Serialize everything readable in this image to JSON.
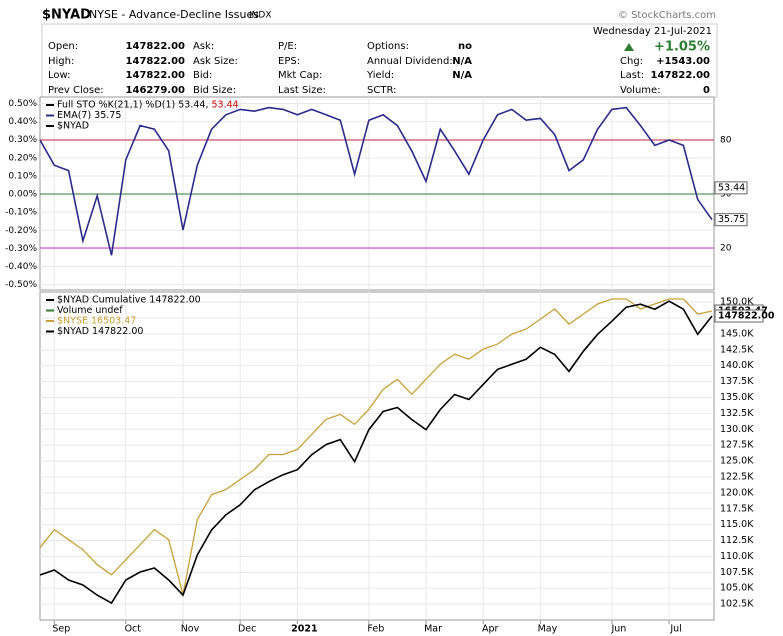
{
  "header": {
    "symbol": "$NYAD",
    "description": "NYSE - Advance-Decline Issues",
    "exchange": "INDX",
    "source": "© StockCharts.com",
    "date": "Wednesday  21-Jul-2021",
    "change_pct": "+1.05%",
    "quote_columns": [
      [
        {
          "label": "Open:",
          "value": "147822.00"
        },
        {
          "label": "High:",
          "value": "147822.00"
        },
        {
          "label": "Low:",
          "value": "147822.00"
        },
        {
          "label": "Prev Close:",
          "value": "146279.00"
        }
      ],
      [
        {
          "label": "Ask:"
        },
        {
          "label": "Ask Size:"
        },
        {
          "label": "Bid:"
        },
        {
          "label": "Bid Size:"
        }
      ],
      [
        {
          "label": "P/E:"
        },
        {
          "label": "EPS:"
        },
        {
          "label": "Mkt Cap:"
        },
        {
          "label": "Last Size:"
        }
      ],
      [
        {
          "label": "Options:",
          "value": "no"
        },
        {
          "label": "Annual Dividend:",
          "value": "N/A"
        },
        {
          "label": "Yield:",
          "value": "N/A"
        },
        {
          "label": "SCTR:"
        }
      ],
      [
        {
          "label": "Chg:",
          "value": "+1543.00"
        },
        {
          "label": "Last:",
          "value": "147822.00"
        },
        {
          "label": "Volume:",
          "value": "0"
        }
      ]
    ]
  },
  "chart_data": [
    {
      "type": "line",
      "legend_items": [
        {
          "text": "Full STO %K(21,1) %D(1) 53.44,",
          "extra": "53.44",
          "extra_color": "#cc0000",
          "color": "#000000"
        },
        {
          "text": "EMA(7) 35.75",
          "color": "#2b2b8c"
        },
        {
          "text": "$NYAD",
          "color": "#000000"
        }
      ],
      "series": [
        {
          "color": "#2b2b8c",
          "axis": "y2",
          "values": [
            80,
            66,
            63,
            24,
            49,
            16,
            69,
            88,
            86,
            74,
            30,
            66,
            86,
            94,
            97,
            96,
            98,
            97,
            94,
            97,
            94,
            91,
            61,
            91,
            94,
            88,
            74,
            57,
            86,
            74,
            61,
            80,
            94,
            97,
            91,
            92,
            83,
            63,
            69,
            86,
            97,
            98,
            88,
            77,
            80,
            77,
            47,
            35.75
          ]
        }
      ],
      "ylim": [
        -0.53,
        0.536
      ],
      "yticks": [
        {
          "value": 0.5,
          "label": "0.50%"
        },
        {
          "value": 0.4,
          "label": "0.40%"
        },
        {
          "value": 0.3,
          "label": "0.30%"
        },
        {
          "value": 0.2,
          "label": "0.20%"
        },
        {
          "value": 0.1,
          "label": "0.10%"
        },
        {
          "value": 0,
          "label": "0.00%"
        },
        {
          "value": -0.1,
          "label": "-0.10%"
        },
        {
          "value": -0.2,
          "label": "-0.20%"
        },
        {
          "value": -0.3,
          "label": "-0.30%"
        },
        {
          "value": -0.4,
          "label": "-0.40%"
        },
        {
          "value": -0.5,
          "label": "-0.50%"
        }
      ],
      "y2lim": [
        -3.3,
        103.9
      ],
      "y2ticks": [
        80,
        50,
        20
      ],
      "ref_line_colors": [
        "#c0284a",
        "#2e7d32",
        "#cc33cc"
      ],
      "value_markers": [
        53.44,
        35.75
      ],
      "grid": true
    },
    {
      "type": "line",
      "categories": [
        null,
        "Sep",
        null,
        null,
        null,
        null,
        "Oct",
        null,
        null,
        null,
        "Nov",
        null,
        null,
        null,
        "Dec",
        null,
        null,
        null,
        "2021",
        null,
        null,
        null,
        null,
        "Feb",
        null,
        null,
        null,
        "Mar",
        null,
        null,
        null,
        "Apr",
        null,
        null,
        null,
        "May",
        null,
        null,
        null,
        null,
        "Jun",
        null,
        null,
        null,
        "Jul",
        null,
        null,
        null
      ],
      "legend_items": [
        {
          "text": "$NYAD Cumulative 147822.00",
          "color": "#000000"
        },
        {
          "text": "Volume undef",
          "color": "#2e7d32"
        },
        {
          "text": "$NYSE 16503.47",
          "color": "#c8a038"
        },
        {
          "text": "$NYAD 147822.00",
          "color": "#000000"
        }
      ],
      "series": [
        {
          "color": "#c8a038",
          "axis": "y2",
          "values": [
            13447,
            13680,
            13550,
            13421,
            13227,
            13097,
            13291,
            13486,
            13680,
            13550,
            12838,
            13809,
            14133,
            14198,
            14327,
            14457,
            14651,
            14651,
            14716,
            14910,
            15104,
            15169,
            15040,
            15234,
            15493,
            15622,
            15428,
            15622,
            15817,
            15946,
            15881,
            16011,
            16076,
            16205,
            16270,
            16399,
            16529,
            16335,
            16464,
            16594,
            16658,
            16658,
            16529,
            16594,
            16658,
            16658,
            16464,
            16503.47
          ]
        },
        {
          "color": "#000000",
          "values": [
            107080,
            107870,
            106290,
            105500,
            103920,
            102660,
            106290,
            107550,
            108180,
            106290,
            103920,
            110230,
            114180,
            116550,
            118120,
            120490,
            121750,
            122860,
            123650,
            126010,
            127590,
            128380,
            124910,
            129960,
            132800,
            133430,
            131540,
            129960,
            133120,
            135480,
            134690,
            137060,
            139430,
            140220,
            141010,
            142900,
            141790,
            139110,
            142270,
            144950,
            147000,
            149210,
            149680,
            148900,
            150160,
            148900,
            144950,
            147822
          ]
        }
      ],
      "ylim": [
        100000,
        151600
      ],
      "yticks": [
        {
          "value": 102500,
          "label": "102.5K"
        },
        {
          "value": 105000,
          "label": "105.0K"
        },
        {
          "value": 107500,
          "label": "107.5K"
        },
        {
          "value": 110000,
          "label": "110.0K"
        },
        {
          "value": 112500,
          "label": "112.5K"
        },
        {
          "value": 115000,
          "label": "115.0K"
        },
        {
          "value": 117500,
          "label": "117.5K"
        },
        {
          "value": 120000,
          "label": "120.0K"
        },
        {
          "value": 122500,
          "label": "122.5K"
        },
        {
          "value": 125000,
          "label": "125.0K"
        },
        {
          "value": 127500,
          "label": "127.5K"
        },
        {
          "value": 130000,
          "label": "130.0K"
        },
        {
          "value": 132500,
          "label": "132.5K"
        },
        {
          "value": 135000,
          "label": "135.0K"
        },
        {
          "value": 137500,
          "label": "137.5K"
        },
        {
          "value": 140000,
          "label": "140.0K"
        },
        {
          "value": 142500,
          "label": "142.5K"
        },
        {
          "value": 145000,
          "label": "145.0K"
        },
        {
          "value": 147500,
          "label": "147.5K"
        },
        {
          "value": 150000,
          "label": "150.0K"
        }
      ],
      "y2lim": [
        12513,
        16749
      ],
      "value_markers": [
        {
          "value": 16503.47,
          "axis": "y2"
        },
        {
          "value": 147822,
          "label": "147822.00"
        }
      ],
      "grid": true
    }
  ]
}
